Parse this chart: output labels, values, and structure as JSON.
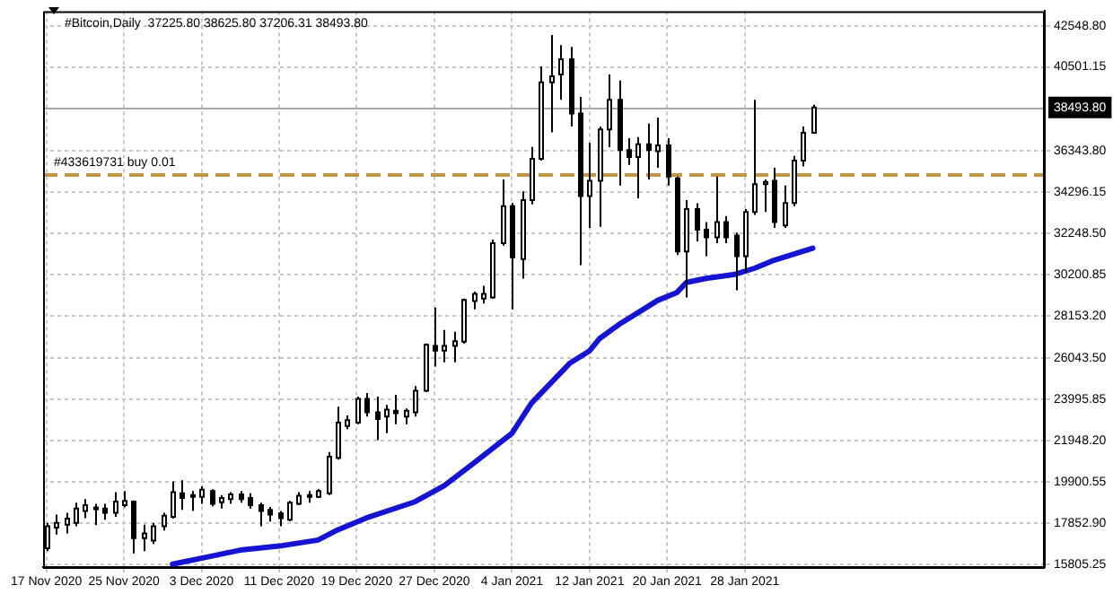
{
  "chart_data": {
    "type": "candlestick",
    "title": "#Bitcoin,Daily  37225.80 38625.80 37206.31 38493.80",
    "x": [
      "2020-11-17",
      "2020-11-18",
      "2020-11-19",
      "2020-11-20",
      "2020-11-21",
      "2020-11-22",
      "2020-11-23",
      "2020-11-24",
      "2020-11-25",
      "2020-11-26",
      "2020-11-27",
      "2020-11-28",
      "2020-11-29",
      "2020-11-30",
      "2020-12-01",
      "2020-12-02",
      "2020-12-03",
      "2020-12-04",
      "2020-12-05",
      "2020-12-06",
      "2020-12-07",
      "2020-12-08",
      "2020-12-09",
      "2020-12-10",
      "2020-12-11",
      "2020-12-12",
      "2020-12-13",
      "2020-12-14",
      "2020-12-15",
      "2020-12-16",
      "2020-12-17",
      "2020-12-18",
      "2020-12-19",
      "2020-12-20",
      "2020-12-21",
      "2020-12-22",
      "2020-12-23",
      "2020-12-24",
      "2020-12-25",
      "2020-12-26",
      "2020-12-27",
      "2020-12-28",
      "2020-12-29",
      "2020-12-30",
      "2020-12-31",
      "2021-01-01",
      "2021-01-02",
      "2021-01-03",
      "2021-01-04",
      "2021-01-05",
      "2021-01-06",
      "2021-01-07",
      "2021-01-08",
      "2021-01-09",
      "2021-01-10",
      "2021-01-11",
      "2021-01-12",
      "2021-01-13",
      "2021-01-14",
      "2021-01-15",
      "2021-01-16",
      "2021-01-17",
      "2021-01-18",
      "2021-01-19",
      "2021-01-20",
      "2021-01-21",
      "2021-01-22",
      "2021-01-23",
      "2021-01-24",
      "2021-01-25",
      "2021-01-26",
      "2021-01-27",
      "2021-01-28",
      "2021-01-29",
      "2021-01-30",
      "2021-01-31",
      "2021-02-01",
      "2021-02-02",
      "2021-02-03",
      "2021-02-04"
    ],
    "ohlc": [
      [
        16596,
        17856,
        16450,
        17680
      ],
      [
        17622,
        18268,
        17270,
        17856
      ],
      [
        17768,
        18355,
        17329,
        18063
      ],
      [
        17856,
        18855,
        17680,
        18560
      ],
      [
        18443,
        19030,
        18091,
        18736
      ],
      [
        18560,
        18794,
        17739,
        18619
      ],
      [
        18560,
        18794,
        18004,
        18355
      ],
      [
        18355,
        19381,
        18150,
        18911
      ],
      [
        18736,
        19440,
        18619,
        18940
      ],
      [
        18911,
        18970,
        16332,
        17094
      ],
      [
        17094,
        17768,
        16450,
        17329
      ],
      [
        16977,
        17856,
        16800,
        17680
      ],
      [
        17680,
        18355,
        17475,
        18209
      ],
      [
        18150,
        19909,
        18063,
        19381
      ],
      [
        19322,
        19968,
        18502,
        19087
      ],
      [
        19146,
        19440,
        18443,
        19234
      ],
      [
        19146,
        19673,
        18794,
        19498
      ],
      [
        19440,
        19527,
        18677,
        18794
      ],
      [
        18882,
        19234,
        18560,
        19087
      ],
      [
        19030,
        19381,
        18794,
        19263
      ],
      [
        19263,
        19440,
        18852,
        19030
      ],
      [
        19087,
        19322,
        18560,
        18736
      ],
      [
        18736,
        18852,
        17680,
        18443
      ],
      [
        18502,
        18648,
        17915,
        18267
      ],
      [
        18326,
        18443,
        17680,
        18091
      ],
      [
        18004,
        18940,
        17945,
        18852
      ],
      [
        18794,
        19381,
        18736,
        19205
      ],
      [
        19176,
        19440,
        18852,
        19234
      ],
      [
        19146,
        19527,
        19087,
        19440
      ],
      [
        19322,
        21372,
        19234,
        21138
      ],
      [
        21079,
        23628,
        20991,
        22837
      ],
      [
        22662,
        23189,
        22515,
        22955
      ],
      [
        22837,
        24126,
        22750,
        24009
      ],
      [
        24009,
        24302,
        23131,
        23341
      ],
      [
        23341,
        24126,
        21959,
        23013
      ],
      [
        23131,
        23716,
        22310,
        23482
      ],
      [
        23424,
        24214,
        22750,
        23306
      ],
      [
        23131,
        23540,
        22750,
        23424
      ],
      [
        23341,
        24653,
        23131,
        24419
      ],
      [
        24419,
        26764,
        24360,
        26705
      ],
      [
        26647,
        28551,
        25621,
        26412
      ],
      [
        26412,
        27438,
        25826,
        26647
      ],
      [
        26647,
        27350,
        25826,
        26881
      ],
      [
        26852,
        28990,
        26764,
        28932
      ],
      [
        28876,
        29342,
        28463,
        29228
      ],
      [
        28990,
        29635,
        28745,
        29228
      ],
      [
        29053,
        31921,
        28990,
        31745
      ],
      [
        31745,
        34908,
        31627,
        33590
      ],
      [
        33590,
        33737,
        28463,
        31042
      ],
      [
        30954,
        34322,
        29984,
        33884
      ],
      [
        33884,
        36524,
        33678,
        35932
      ],
      [
        35932,
        40533,
        35844,
        39742
      ],
      [
        39742,
        42087,
        37253,
        40036
      ],
      [
        40124,
        41589,
        38864,
        40886
      ],
      [
        40886,
        41502,
        37546,
        38191
      ],
      [
        38191,
        39011,
        30661,
        34089
      ],
      [
        34089,
        36726,
        32506,
        34850
      ],
      [
        34850,
        37546,
        32565,
        37400
      ],
      [
        37400,
        40124,
        36521,
        38864
      ],
      [
        38864,
        39831,
        34616,
        36374
      ],
      [
        36374,
        36960,
        35641,
        36022
      ],
      [
        36022,
        37019,
        33971,
        36667
      ],
      [
        36667,
        37692,
        34909,
        36374
      ],
      [
        36315,
        37985,
        35495,
        36608
      ],
      [
        36608,
        36960,
        34616,
        35056
      ],
      [
        34968,
        35056,
        31159,
        31334
      ],
      [
        31334,
        33884,
        29049,
        33444
      ],
      [
        33444,
        33736,
        31833,
        32419
      ],
      [
        32419,
        32799,
        31100,
        32038
      ],
      [
        32038,
        35056,
        31745,
        32799
      ],
      [
        32799,
        33092,
        31745,
        32038
      ],
      [
        32126,
        32272,
        29403,
        31100
      ],
      [
        31100,
        33444,
        30280,
        33297
      ],
      [
        33297,
        38864,
        33151,
        34675
      ],
      [
        34675,
        34909,
        33297,
        34792
      ],
      [
        34850,
        35495,
        32506,
        32799
      ],
      [
        32624,
        34616,
        32506,
        33737
      ],
      [
        33737,
        36081,
        33590,
        35847
      ],
      [
        35847,
        37546,
        35554,
        37226
      ],
      [
        37225.8,
        38625.8,
        37206.31,
        38493.8
      ]
    ],
    "series": [
      {
        "type": "line",
        "color": "#1414d2",
        "x": [
          "2020-11-30",
          "2020-12-04",
          "2020-12-07",
          "2020-12-11",
          "2020-12-15",
          "2020-12-17",
          "2020-12-20",
          "2020-12-25",
          "2020-12-28",
          "2020-12-31",
          "2021-01-04",
          "2021-01-06",
          "2021-01-10",
          "2021-01-12",
          "2021-01-13",
          "2021-01-15",
          "2021-01-17",
          "2021-01-19",
          "2021-01-21",
          "2021-01-22",
          "2021-01-24",
          "2021-01-27",
          "2021-01-29",
          "2021-01-31",
          "2021-02-02",
          "2021-02-04"
        ],
        "values": [
          15800,
          16200,
          16500,
          16700,
          17000,
          17500,
          18100,
          18900,
          19700,
          20800,
          22300,
          23800,
          25800,
          26400,
          27000,
          27700,
          28300,
          28900,
          29300,
          29800,
          30000,
          30200,
          30500,
          30900,
          31200,
          31500
        ]
      }
    ],
    "xlim": [
      "2020-11-16T16:00",
      "2021-02-27T22:00"
    ],
    "xticks": [
      {
        "value": "2020-11-17",
        "label": "17 Nov 2020"
      },
      {
        "value": "2020-11-25",
        "label": "25 Nov 2020"
      },
      {
        "value": "2020-12-03",
        "label": "3 Dec 2020"
      },
      {
        "value": "2020-12-11",
        "label": "11 Dec 2020"
      },
      {
        "value": "2020-12-19",
        "label": "19 Dec 2020"
      },
      {
        "value": "2020-12-27",
        "label": "27 Dec 2020"
      },
      {
        "value": "2021-01-04",
        "label": "4 Jan 2021"
      },
      {
        "value": "2021-01-12",
        "label": "12 Jan 2021"
      },
      {
        "value": "2021-01-20",
        "label": "20 Jan 2021"
      },
      {
        "value": "2021-01-28",
        "label": "28 Jan 2021"
      }
    ],
    "ylim": [
      15657,
      43274
    ],
    "yticks": [
      {
        "value": 15805.25,
        "label": "15805.25"
      },
      {
        "value": 17852.9,
        "label": "17852.90"
      },
      {
        "value": 19900.55,
        "label": "19900.55"
      },
      {
        "value": 21948.2,
        "label": "21948.20"
      },
      {
        "value": 23995.85,
        "label": "23995.85"
      },
      {
        "value": 26043.5,
        "label": "26043.50"
      },
      {
        "value": 28153.2,
        "label": "28153.20"
      },
      {
        "value": 30200.85,
        "label": "30200.85"
      },
      {
        "value": 32248.5,
        "label": "32248.50"
      },
      {
        "value": 34296.15,
        "label": "34296.15"
      },
      {
        "value": 36343.8,
        "label": "36343.80"
      },
      {
        "value": 40501.15,
        "label": "40501.15"
      },
      {
        "value": 42548.8,
        "label": "42548.80"
      }
    ],
    "ref_lines": [
      {
        "axis": "y",
        "value": 38493.8,
        "label": "38493.80",
        "color": "#a8a8a8",
        "line_style": "solid"
      },
      {
        "axis": "y",
        "value": 35140,
        "label": "#433619731 buy 0.01",
        "color": "#c39445",
        "line_style": "dashed"
      }
    ],
    "grid": true,
    "legend": false,
    "marker": "none",
    "line_style": "solid"
  }
}
